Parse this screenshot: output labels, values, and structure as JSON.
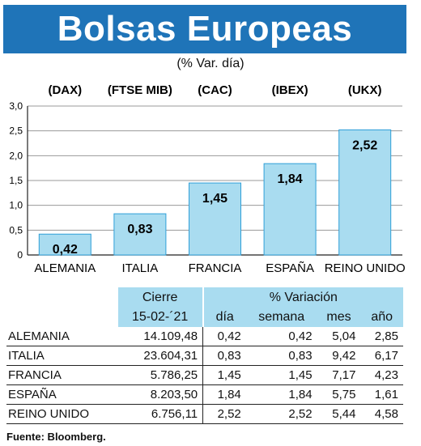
{
  "title": "Bolsas Europeas",
  "subtitle": "(% Var. día)",
  "chart_data": {
    "type": "bar",
    "index_labels": [
      "(DAX)",
      "(FTSE MIB)",
      "(CAC)",
      "(IBEX)",
      "(UKX)"
    ],
    "categories": [
      "ALEMANIA",
      "ITALIA",
      "FRANCIA",
      "ESPAÑA",
      "REINO UNIDO"
    ],
    "values": [
      0.42,
      0.83,
      1.45,
      1.84,
      2.52
    ],
    "value_labels": [
      "0,42",
      "0,83",
      "1,45",
      "1,84",
      "2,52"
    ],
    "yticks": [
      "0",
      "0,5",
      "1,0",
      "1,5",
      "2,0",
      "2,5",
      "3,0"
    ],
    "ytick_values": [
      0,
      0.5,
      1.0,
      1.5,
      2.0,
      2.5,
      3.0
    ],
    "ylim": [
      0,
      3.0
    ],
    "grid": true,
    "bar_color": "#a9dcf0",
    "bar_edge_color": "#2f9fd8"
  },
  "table": {
    "header_cierre": "Cierre",
    "header_variacion": "% Variación",
    "header_date": "15-02-´21",
    "col_dia": "día",
    "col_semana": "semana",
    "col_mes": "mes",
    "col_ano": "año",
    "rows": [
      {
        "name": "ALEMANIA",
        "cierre": "14.109,48",
        "dia": "0,42",
        "semana": "0,42",
        "mes": "5,04",
        "ano": "2,85"
      },
      {
        "name": "ITALIA",
        "cierre": "23.604,31",
        "dia": "0,83",
        "semana": "0,83",
        "mes": "9,42",
        "ano": "6,17"
      },
      {
        "name": "FRANCIA",
        "cierre": "5.786,25",
        "dia": "1,45",
        "semana": "1,45",
        "mes": "7,17",
        "ano": "4,23"
      },
      {
        "name": "ESPAÑA",
        "cierre": "8.203,50",
        "dia": "1,84",
        "semana": "1,84",
        "mes": "5,75",
        "ano": "1,61"
      },
      {
        "name": "REINO UNIDO",
        "cierre": "6.756,11",
        "dia": "2,52",
        "semana": "2,52",
        "mes": "5,44",
        "ano": "4,58"
      }
    ]
  },
  "source": "Fuente: Bloomberg.",
  "colors": {
    "title_bg": "#1f74b8",
    "header_bg": "#a9dcf0"
  }
}
